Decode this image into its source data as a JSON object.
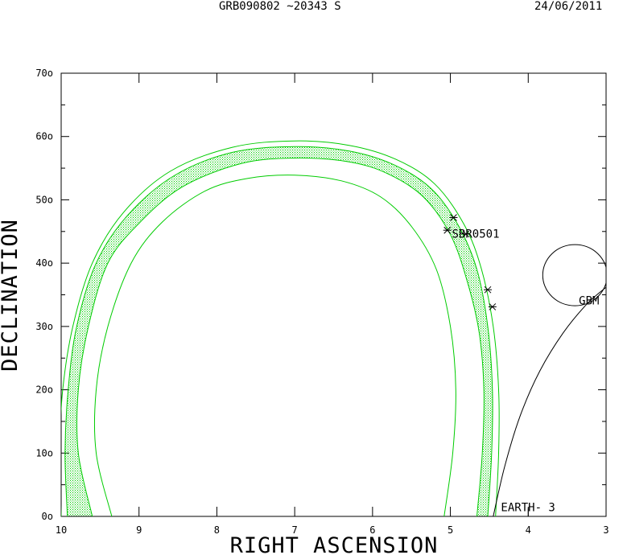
{
  "header": {
    "left": "GRB090802 ~20343 S",
    "right": "24/06/2011"
  },
  "chart_data": {
    "type": "scatter",
    "title": "GRB090802 ~20343 S",
    "xlabel": "RIGHT ASCENSION",
    "ylabel": "DECLINATION",
    "xlim": [
      10,
      3
    ],
    "ylim": [
      0,
      70
    ],
    "x_ticks": [
      10,
      9,
      8,
      7,
      6,
      5,
      4,
      3
    ],
    "x_tick_labels": [
      "10",
      "9",
      "8",
      "7",
      "6",
      "5",
      "4",
      "3"
    ],
    "y_ticks": [
      0,
      10,
      20,
      30,
      40,
      50,
      60,
      70
    ],
    "y_tick_labels": [
      "0o",
      "10o",
      "20o",
      "30o",
      "40o",
      "50o",
      "60o",
      "70o"
    ],
    "annotations": [
      {
        "text": "SBR0501",
        "x": 4.98,
        "y": 44.0
      },
      {
        "text": "GBM",
        "x": 3.35,
        "y": 33.5
      },
      {
        "text": "EARTH- 3",
        "x": 4.35,
        "y": 0.8
      }
    ],
    "markers": [
      {
        "x": 4.96,
        "y": 47.2
      },
      {
        "x": 5.04,
        "y": 45.2
      },
      {
        "x": 4.8,
        "y": 44.6
      },
      {
        "x": 4.52,
        "y": 35.8
      },
      {
        "x": 4.46,
        "y": 33.1
      }
    ],
    "annulus": {
      "outer_bound": [
        [
          10.0,
          0
        ],
        [
          10.02,
          10
        ],
        [
          9.98,
          20
        ],
        [
          9.85,
          30
        ],
        [
          9.6,
          40
        ],
        [
          9.2,
          48
        ],
        [
          8.6,
          54.5
        ],
        [
          7.8,
          58.3
        ],
        [
          7.0,
          59.3
        ],
        [
          6.3,
          58.6
        ],
        [
          5.7,
          56.4
        ],
        [
          5.2,
          52.5
        ],
        [
          4.82,
          46
        ],
        [
          4.6,
          39
        ],
        [
          4.45,
          30
        ],
        [
          4.38,
          20
        ],
        [
          4.38,
          10
        ],
        [
          4.42,
          0
        ]
      ],
      "band_outer": [
        [
          9.92,
          0
        ],
        [
          9.95,
          10
        ],
        [
          9.91,
          20
        ],
        [
          9.8,
          30
        ],
        [
          9.55,
          40
        ],
        [
          9.15,
          47.5
        ],
        [
          8.55,
          53.8
        ],
        [
          7.8,
          57.5
        ],
        [
          7.0,
          58.4
        ],
        [
          6.3,
          57.7
        ],
        [
          5.72,
          55.5
        ],
        [
          5.25,
          51.8
        ],
        [
          4.9,
          46
        ],
        [
          4.66,
          39
        ],
        [
          4.52,
          30
        ],
        [
          4.46,
          20
        ],
        [
          4.47,
          10
        ],
        [
          4.52,
          0
        ]
      ],
      "band_inner": [
        [
          9.6,
          0
        ],
        [
          9.78,
          10
        ],
        [
          9.78,
          20
        ],
        [
          9.65,
          30
        ],
        [
          9.4,
          40
        ],
        [
          9.0,
          46.3
        ],
        [
          8.45,
          52
        ],
        [
          7.7,
          55.7
        ],
        [
          7.0,
          56.6
        ],
        [
          6.3,
          56.0
        ],
        [
          5.8,
          54.1
        ],
        [
          5.35,
          50.5
        ],
        [
          5.0,
          44.5
        ],
        [
          4.78,
          37
        ],
        [
          4.63,
          29
        ],
        [
          4.57,
          20
        ],
        [
          4.59,
          10
        ],
        [
          4.66,
          0
        ]
      ],
      "inner_bound": [
        [
          9.35,
          0
        ],
        [
          9.55,
          10
        ],
        [
          9.55,
          20
        ],
        [
          9.4,
          30
        ],
        [
          9.1,
          40
        ],
        [
          8.7,
          46.5
        ],
        [
          8.15,
          51.4
        ],
        [
          7.6,
          53.4
        ],
        [
          7.0,
          53.9
        ],
        [
          6.4,
          53.0
        ],
        [
          5.9,
          50.5
        ],
        [
          5.5,
          45.8
        ],
        [
          5.18,
          39
        ],
        [
          5.0,
          30
        ],
        [
          4.93,
          20
        ],
        [
          4.97,
          10
        ],
        [
          5.08,
          0
        ]
      ]
    },
    "gbm_circle": {
      "x": 3.4,
      "y": 38.1,
      "radius_deg": 4.9
    },
    "earth_limb": [
      [
        4.45,
        0
      ],
      [
        4.3,
        8
      ],
      [
        4.1,
        16
      ],
      [
        3.85,
        23
      ],
      [
        3.55,
        29
      ],
      [
        3.25,
        33.5
      ],
      [
        3.0,
        36.2
      ]
    ]
  }
}
